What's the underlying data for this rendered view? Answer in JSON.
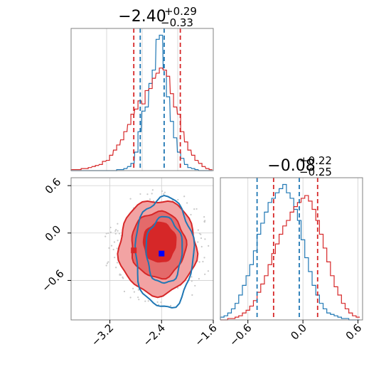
{
  "colors": {
    "red": "#d62728",
    "blue": "#1f77b4",
    "red_fill_light": "#f2a3a3",
    "red_fill_mid": "#e46a6a",
    "red_fill_dark": "#d62728",
    "frame": "#808080",
    "grid": "#cfcfcf"
  },
  "chart_data": [
    {
      "type": "histogram",
      "panel": "top-left",
      "parameter_index": 0,
      "title": {
        "median": "−2.40",
        "plus": "+0.29",
        "minus": "−0.33"
      },
      "xlim": [
        -3.8,
        -1.6
      ],
      "grid": true,
      "quantile_lines": {
        "red": [
          -2.83,
          -2.11
        ],
        "blue": [
          -2.73,
          -2.36
        ]
      },
      "x_centers": [
        -3.78,
        -3.73,
        -3.67,
        -3.62,
        -3.56,
        -3.51,
        -3.45,
        -3.4,
        -3.34,
        -3.29,
        -3.23,
        -3.18,
        -3.12,
        -3.07,
        -3.01,
        -2.96,
        -2.9,
        -2.85,
        -2.79,
        -2.74,
        -2.68,
        -2.63,
        -2.57,
        -2.52,
        -2.46,
        -2.41,
        -2.35,
        -2.3,
        -2.24,
        -2.19,
        -2.13,
        -2.08,
        -2.02,
        -1.97,
        -1.91,
        -1.86,
        -1.8,
        -1.75,
        -1.69,
        -1.64
      ],
      "series": [
        {
          "color": "blue",
          "values": [
            0,
            0,
            0,
            0,
            0,
            0,
            0,
            0,
            0,
            0,
            0,
            0,
            0,
            1,
            1,
            2,
            4,
            7,
            18,
            38,
            58,
            62,
            85,
            98,
            128,
            132,
            98,
            72,
            48,
            32,
            18,
            12,
            6,
            3,
            2,
            1,
            0,
            0,
            0,
            0
          ]
        },
        {
          "color": "red",
          "values": [
            1,
            1,
            1,
            2,
            2,
            3,
            4,
            5,
            6,
            9,
            10,
            15,
            20,
            25,
            30,
            38,
            45,
            55,
            60,
            68,
            65,
            78,
            80,
            90,
            95,
            100,
            98,
            92,
            75,
            62,
            55,
            38,
            28,
            20,
            15,
            10,
            7,
            4,
            2,
            1
          ]
        }
      ]
    },
    {
      "type": "histogram",
      "panel": "bottom-right",
      "parameter_index": 1,
      "title": {
        "median": "−0.08",
        "plus": "+0.22",
        "minus": "−0.25"
      },
      "xlim": [
        -0.9,
        0.65
      ],
      "x_ticks": [
        -0.6,
        0.0,
        0.6
      ],
      "x_tick_labels": [
        "−0.6",
        "0.0",
        "0.6"
      ],
      "grid": true,
      "quantile_lines": {
        "red": [
          -0.32,
          0.16
        ],
        "blue": [
          -0.5,
          -0.04
        ]
      },
      "x_centers": [
        -0.88,
        -0.84,
        -0.8,
        -0.76,
        -0.72,
        -0.68,
        -0.64,
        -0.6,
        -0.56,
        -0.52,
        -0.48,
        -0.44,
        -0.4,
        -0.36,
        -0.32,
        -0.28,
        -0.24,
        -0.2,
        -0.16,
        -0.12,
        -0.08,
        -0.04,
        0.0,
        0.04,
        0.08,
        0.12,
        0.16,
        0.2,
        0.24,
        0.28,
        0.32,
        0.36,
        0.4,
        0.44,
        0.48,
        0.52,
        0.56,
        0.6
      ],
      "series": [
        {
          "color": "blue",
          "values": [
            2,
            3,
            5,
            8,
            12,
            18,
            25,
            32,
            40,
            50,
            62,
            70,
            78,
            85,
            88,
            92,
            95,
            98,
            92,
            88,
            80,
            72,
            58,
            45,
            35,
            25,
            18,
            12,
            8,
            5,
            4,
            3,
            2,
            1,
            1,
            0,
            0,
            0
          ]
        },
        {
          "color": "red",
          "values": [
            0,
            0,
            1,
            1,
            2,
            3,
            5,
            7,
            10,
            14,
            20,
            26,
            32,
            40,
            48,
            55,
            62,
            68,
            72,
            78,
            82,
            85,
            88,
            90,
            86,
            80,
            72,
            62,
            52,
            42,
            32,
            24,
            18,
            12,
            8,
            5,
            3,
            2
          ]
        }
      ]
    },
    {
      "type": "contour",
      "panel": "bottom-left",
      "xlim": [
        -3.8,
        -1.6
      ],
      "ylim": [
        -1.1,
        0.7
      ],
      "x_ticks": [
        -3.2,
        -2.4,
        -1.6
      ],
      "x_tick_labels": [
        "−3.2",
        "−2.4",
        "−1.6"
      ],
      "y_ticks": [
        -0.6,
        0.0,
        0.6
      ],
      "y_tick_labels": [
        "−0.6",
        "0.0",
        "0.6"
      ],
      "grid": true,
      "red_levels": [
        {
          "cx": -2.46,
          "cy": -0.18,
          "rx": 0.6,
          "ry": 0.6
        },
        {
          "cx": -2.45,
          "cy": -0.15,
          "rx": 0.42,
          "ry": 0.42
        },
        {
          "cx": -2.43,
          "cy": -0.12,
          "rx": 0.25,
          "ry": 0.25
        }
      ],
      "blue_levels": [
        {
          "cx": -2.36,
          "cy": -0.25,
          "rx": 0.45,
          "ry": 0.7
        },
        {
          "cx": -2.36,
          "cy": -0.22,
          "rx": 0.28,
          "ry": 0.42
        }
      ],
      "markers": [
        {
          "x": -2.83,
          "y": -0.22,
          "color": "red"
        },
        {
          "x": -2.48,
          "y": -0.05,
          "color": "red"
        },
        {
          "x": -2.4,
          "y": -0.26,
          "color": "blue"
        }
      ]
    }
  ]
}
